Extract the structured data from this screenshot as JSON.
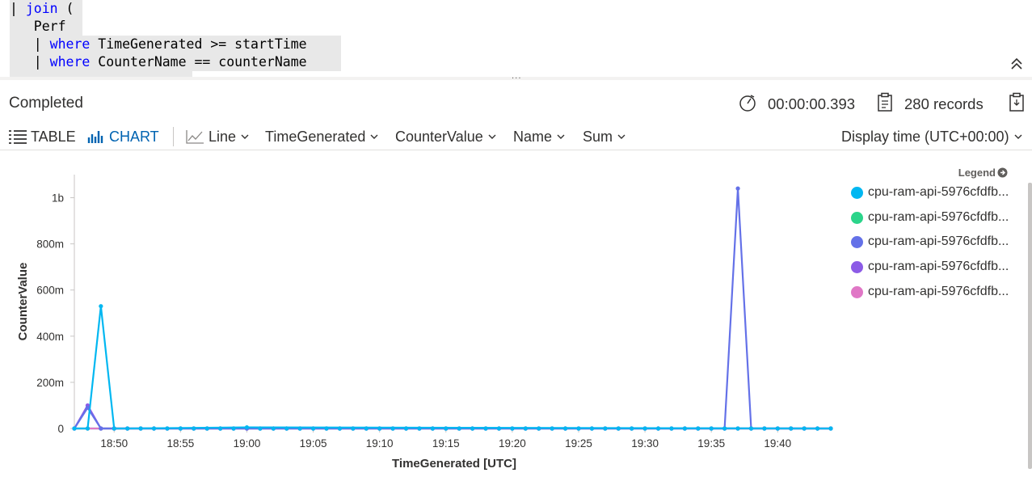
{
  "editor": {
    "line1": {
      "pipe": "| ",
      "keyword": "join",
      "rest": " ("
    },
    "line2": {
      "text": "   Perf"
    },
    "line3": {
      "prefix": "   | ",
      "keyword": "where",
      "rest": " TimeGenerated >= startTime"
    },
    "line4": {
      "prefix": "   | ",
      "keyword": "where",
      "rest": " CounterName == counterName"
    },
    "collapse_icon": "chevron-double-up-icon",
    "splitter_grip": "..."
  },
  "status": {
    "state": "Completed",
    "elapsed": "00:00:00.393",
    "records": "280 records",
    "timer_icon": "stopwatch-icon",
    "records_icon": "clipboard-icon",
    "copy_icon": "clipboard-copy-icon"
  },
  "toolbar": {
    "table_label": "TABLE",
    "chart_label": "CHART",
    "chart_type": "Line",
    "x_column": "TimeGenerated",
    "y_column": "CounterValue",
    "split_by": "Name",
    "aggregation": "Sum",
    "display_time": "Display time (UTC+00:00)"
  },
  "legend": {
    "title": "Legend",
    "items": [
      {
        "label": "cpu-ram-api-5976cfdfb...",
        "color": "#00b7f1"
      },
      {
        "label": "cpu-ram-api-5976cfdfb...",
        "color": "#2bd48a"
      },
      {
        "label": "cpu-ram-api-5976cfdfb...",
        "color": "#6471e8"
      },
      {
        "label": "cpu-ram-api-5976cfdfb...",
        "color": "#8c5be6"
      },
      {
        "label": "cpu-ram-api-5976cfdfb...",
        "color": "#e077c6"
      }
    ]
  },
  "chart_data": {
    "type": "line",
    "xlabel": "TimeGenerated [UTC]",
    "ylabel": "CounterValue",
    "x_ticks": [
      "18:50",
      "18:55",
      "19:00",
      "19:05",
      "19:10",
      "19:15",
      "19:20",
      "19:25",
      "19:30",
      "19:35",
      "19:40"
    ],
    "y_ticks": [
      "0",
      "200m",
      "400m",
      "600m",
      "800m",
      "1b"
    ],
    "ylim": [
      0,
      1.1
    ],
    "x_range": [
      "18:47",
      "19:44"
    ],
    "grid": false,
    "legend_position": "right",
    "series": [
      {
        "color": "#00b7f1",
        "points": [
          [
            "18:47",
            0
          ],
          [
            "18:48",
            0
          ],
          [
            "18:49",
            0.53
          ],
          [
            "18:50",
            0
          ],
          [
            "18:51",
            0
          ],
          [
            "19:00",
            0.005
          ],
          [
            "19:44",
            0
          ]
        ]
      },
      {
        "color": "#2bd48a",
        "points": [
          [
            "18:47",
            0
          ],
          [
            "19:44",
            0
          ]
        ]
      },
      {
        "color": "#6471e8",
        "points": [
          [
            "18:47",
            0
          ],
          [
            "18:48",
            0.09
          ],
          [
            "18:49",
            0
          ],
          [
            "19:36",
            0
          ],
          [
            "19:37",
            1.04
          ],
          [
            "19:38",
            0
          ],
          [
            "19:44",
            0
          ]
        ]
      },
      {
        "color": "#8c5be6",
        "points": [
          [
            "18:47",
            0
          ],
          [
            "18:48",
            0.1
          ],
          [
            "18:49",
            0
          ],
          [
            "19:44",
            0
          ]
        ]
      },
      {
        "color": "#e077c6",
        "points": [
          [
            "18:47",
            0
          ],
          [
            "19:44",
            0
          ]
        ]
      }
    ]
  }
}
